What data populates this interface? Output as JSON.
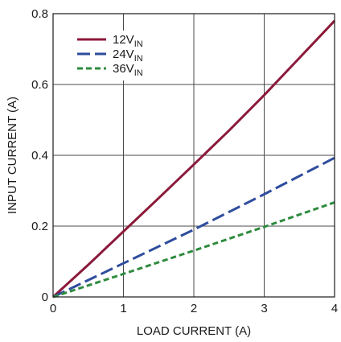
{
  "chart_data": {
    "type": "line",
    "xlabel": "LOAD CURRENT (A)",
    "ylabel": "INPUT CURRENT (A)",
    "xlim": [
      0,
      4
    ],
    "ylim": [
      0,
      0.8
    ],
    "x_ticks": [
      "0",
      "1",
      "2",
      "3",
      "4"
    ],
    "y_ticks": [
      "0",
      "0.2",
      "0.4",
      "0.6",
      "0.8"
    ],
    "grid": true,
    "legend_position": "top-left",
    "series": [
      {
        "name": "12V",
        "name_subscript": "IN",
        "color": "#8b1a3a",
        "dash": "solid",
        "x": [
          0,
          0.5,
          1,
          1.5,
          2,
          2.5,
          3,
          3.5,
          4
        ],
        "y": [
          0,
          0.091,
          0.185,
          0.279,
          0.374,
          0.47,
          0.57,
          0.675,
          0.78
        ]
      },
      {
        "name": "24V",
        "name_subscript": "IN",
        "color": "#2f4d9e",
        "dash": "long-dash",
        "x": [
          0,
          1,
          2,
          3,
          4
        ],
        "y": [
          0,
          0.095,
          0.19,
          0.29,
          0.393
        ]
      },
      {
        "name": "36V",
        "name_subscript": "IN",
        "color": "#2e8b3e",
        "dash": "short-dash",
        "x": [
          0,
          1,
          2,
          3,
          4
        ],
        "y": [
          0,
          0.065,
          0.131,
          0.198,
          0.267
        ]
      }
    ]
  }
}
